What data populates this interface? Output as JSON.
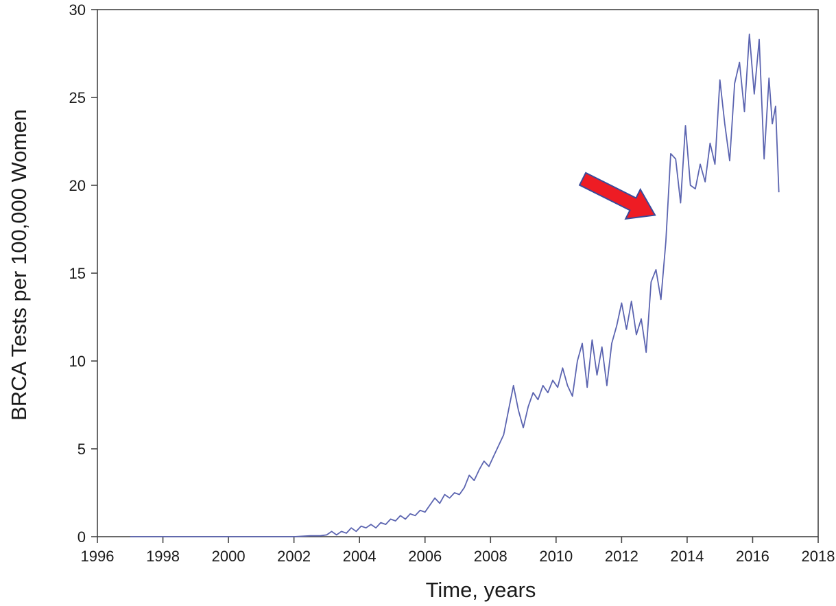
{
  "chart_data": {
    "type": "line",
    "title": "",
    "xlabel": "Time, years",
    "ylabel": "BRCA Tests per 100,000 Women",
    "xlim": [
      1996,
      2018
    ],
    "ylim": [
      0,
      30
    ],
    "x_ticks": [
      1996,
      1998,
      2000,
      2002,
      2004,
      2006,
      2008,
      2010,
      2012,
      2014,
      2016,
      2018
    ],
    "y_ticks": [
      0,
      5,
      10,
      15,
      20,
      25,
      30
    ],
    "grid": false,
    "legend": "none",
    "colors": {
      "line": "#5b64b0",
      "arrow_fill": "#ee1c24",
      "arrow_stroke": "#3a4a9a",
      "axis": "#444444"
    },
    "series": [
      {
        "x": [
          1997,
          1998,
          1999,
          2000,
          2001,
          2002,
          2002.5,
          2002.8,
          2003.0,
          2003.15,
          2003.3,
          2003.45,
          2003.6,
          2003.75,
          2003.9,
          2004.05,
          2004.2,
          2004.35,
          2004.5,
          2004.65,
          2004.8,
          2004.95,
          2005.1,
          2005.25,
          2005.4,
          2005.55,
          2005.7,
          2005.85,
          2006.0,
          2006.15,
          2006.3,
          2006.45,
          2006.6,
          2006.75,
          2006.9,
          2007.05,
          2007.2,
          2007.35,
          2007.5,
          2007.65,
          2007.8,
          2007.95,
          2008.1,
          2008.25,
          2008.4,
          2008.55,
          2008.7,
          2008.85,
          2009.0,
          2009.15,
          2009.3,
          2009.45,
          2009.6,
          2009.75,
          2009.9,
          2010.05,
          2010.2,
          2010.35,
          2010.5,
          2010.65,
          2010.8,
          2010.95,
          2011.1,
          2011.25,
          2011.4,
          2011.55,
          2011.7,
          2011.85,
          2012.0,
          2012.15,
          2012.3,
          2012.45,
          2012.6,
          2012.75,
          2012.9,
          2013.05,
          2013.2,
          2013.35,
          2013.5,
          2013.65,
          2013.8,
          2013.95,
          2014.1,
          2014.25,
          2014.4,
          2014.55,
          2014.7,
          2014.85,
          2015.0,
          2015.15,
          2015.3,
          2015.45,
          2015.6,
          2015.75,
          2015.9,
          2016.05,
          2016.2,
          2016.35,
          2016.5,
          2016.6,
          2016.7,
          2016.8
        ],
        "values": [
          0,
          0,
          0,
          0,
          0,
          0,
          0.05,
          0.05,
          0.1,
          0.3,
          0.1,
          0.3,
          0.2,
          0.5,
          0.3,
          0.6,
          0.5,
          0.7,
          0.5,
          0.8,
          0.7,
          1.0,
          0.9,
          1.2,
          1.0,
          1.3,
          1.2,
          1.5,
          1.4,
          1.8,
          2.2,
          1.9,
          2.4,
          2.2,
          2.5,
          2.4,
          2.8,
          3.5,
          3.2,
          3.8,
          4.3,
          4.0,
          4.6,
          5.2,
          5.8,
          7.2,
          8.6,
          7.2,
          6.2,
          7.4,
          8.2,
          7.8,
          8.6,
          8.2,
          8.9,
          8.5,
          9.6,
          8.6,
          8.0,
          10.0,
          11.0,
          8.5,
          11.2,
          9.2,
          10.8,
          8.6,
          11.0,
          12.0,
          13.3,
          11.8,
          13.4,
          11.5,
          12.4,
          10.5,
          14.5,
          15.2,
          13.5,
          16.8,
          21.8,
          21.5,
          19.0,
          23.4,
          20.0,
          19.8,
          21.2,
          20.2,
          22.4,
          21.2,
          26.0,
          23.5,
          21.4,
          25.8,
          27.0,
          24.2,
          28.6,
          25.2,
          28.3,
          21.5,
          26.1,
          23.5,
          24.5,
          19.6
        ]
      }
    ],
    "annotations": [
      {
        "kind": "arrow",
        "points_to_year": 2013.0,
        "points_to_value": 18.3
      }
    ]
  }
}
